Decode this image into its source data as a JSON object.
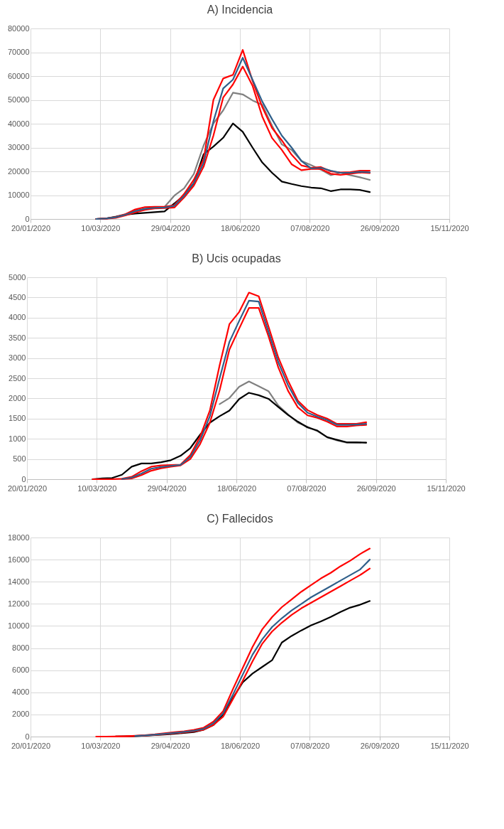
{
  "chart_data": [
    {
      "type": "line",
      "title": "A) Incidencia",
      "grid": true,
      "x": [
        "2020-03-07",
        "2020-03-14",
        "2020-03-21",
        "2020-03-28",
        "2020-04-04",
        "2020-04-11",
        "2020-04-18",
        "2020-04-25",
        "2020-05-02",
        "2020-05-09",
        "2020-05-16",
        "2020-05-23",
        "2020-05-30",
        "2020-06-06",
        "2020-06-13",
        "2020-06-20",
        "2020-06-27",
        "2020-07-04",
        "2020-07-11",
        "2020-07-18",
        "2020-07-25",
        "2020-08-01",
        "2020-08-08",
        "2020-08-15",
        "2020-08-22",
        "2020-08-29",
        "2020-09-05",
        "2020-09-12",
        "2020-09-19"
      ],
      "xlim": [
        "2020-01-20",
        "2020-11-15"
      ],
      "xticks": [
        {
          "value": "2020-01-20",
          "label": "20/01/2020"
        },
        {
          "value": "2020-03-10",
          "label": "10/03/2020"
        },
        {
          "value": "2020-04-29",
          "label": "29/04/2020"
        },
        {
          "value": "2020-06-18",
          "label": "18/06/2020"
        },
        {
          "value": "2020-08-07",
          "label": "07/08/2020"
        },
        {
          "value": "2020-09-26",
          "label": "26/09/2020"
        },
        {
          "value": "2020-11-15",
          "label": "15/11/2020"
        }
      ],
      "ylim": [
        0,
        80000
      ],
      "yticks": [
        0,
        10000,
        20000,
        30000,
        40000,
        50000,
        60000,
        70000,
        80000
      ],
      "series": [
        {
          "color": "#808080",
          "values": [
            0,
            200,
            1000,
            2000,
            3500,
            4300,
            4700,
            5100,
            9800,
            12900,
            18900,
            30900,
            40100,
            45600,
            53000,
            52300,
            49800,
            47900,
            39200,
            31300,
            29000,
            24400,
            22600,
            20700,
            18400,
            19400,
            18400,
            17500,
            16400
          ]
        },
        {
          "color": "#000000",
          "values": [
            0,
            200,
            900,
            1800,
            2300,
            2600,
            2900,
            3200,
            6500,
            10000,
            15000,
            27200,
            30400,
            34100,
            40100,
            36600,
            30000,
            23700,
            19400,
            15700,
            14700,
            13800,
            13200,
            12900,
            11700,
            12400,
            12400,
            12200,
            11300
          ]
        },
        {
          "color": "#ff0000",
          "values": [
            0,
            200,
            800,
            2000,
            4000,
            5000,
            5100,
            5100,
            5800,
            10500,
            16500,
            25000,
            50000,
            59000,
            60500,
            71000,
            58000,
            47000,
            38200,
            33000,
            27000,
            22500,
            21500,
            21800,
            20000,
            19500,
            19700,
            20300,
            20300
          ]
        },
        {
          "color": "#ff0000",
          "values": [
            0,
            100,
            500,
            1500,
            2800,
            3800,
            4400,
            4600,
            4800,
            9000,
            14000,
            22000,
            35000,
            51000,
            56500,
            64000,
            56000,
            43000,
            34000,
            29000,
            23000,
            20500,
            21000,
            21000,
            19000,
            18500,
            19000,
            19500,
            19300
          ]
        },
        {
          "color": "#2f5f8a",
          "values": [
            0,
            200,
            700,
            1800,
            3300,
            4300,
            4700,
            4800,
            5500,
            9700,
            15200,
            23500,
            41000,
            54800,
            58500,
            67700,
            58500,
            49300,
            41900,
            35000,
            30000,
            24400,
            21200,
            21500,
            20300,
            19400,
            19400,
            19800,
            19600
          ]
        }
      ]
    },
    {
      "type": "line",
      "title": "B) Ucis ocupadas",
      "grid": true,
      "x": [
        "2020-03-07",
        "2020-03-14",
        "2020-03-21",
        "2020-03-28",
        "2020-04-04",
        "2020-04-11",
        "2020-04-18",
        "2020-04-25",
        "2020-05-02",
        "2020-05-09",
        "2020-05-16",
        "2020-05-23",
        "2020-05-30",
        "2020-06-06",
        "2020-06-13",
        "2020-06-20",
        "2020-06-27",
        "2020-07-04",
        "2020-07-11",
        "2020-07-18",
        "2020-07-25",
        "2020-08-01",
        "2020-08-08",
        "2020-08-15",
        "2020-08-22",
        "2020-08-29",
        "2020-09-05",
        "2020-09-12",
        "2020-09-19"
      ],
      "xlim": [
        "2020-01-20",
        "2020-11-15"
      ],
      "xticks": [
        {
          "value": "2020-01-20",
          "label": "20/01/2020"
        },
        {
          "value": "2020-03-10",
          "label": "10/03/2020"
        },
        {
          "value": "2020-04-29",
          "label": "29/04/2020"
        },
        {
          "value": "2020-06-18",
          "label": "18/06/2020"
        },
        {
          "value": "2020-08-07",
          "label": "07/08/2020"
        },
        {
          "value": "2020-09-26",
          "label": "26/09/2020"
        },
        {
          "value": "2020-11-15",
          "label": "15/11/2020"
        }
      ],
      "ylim": [
        0,
        5000
      ],
      "yticks": [
        0,
        500,
        1000,
        1500,
        2000,
        2500,
        3000,
        3500,
        4000,
        4500,
        5000
      ],
      "series": [
        {
          "color": "#808080",
          "values": [
            null,
            null,
            null,
            null,
            null,
            null,
            null,
            null,
            null,
            null,
            null,
            null,
            null,
            1860,
            2010,
            2290,
            2420,
            2300,
            2180,
            1825,
            1605,
            1400,
            1300,
            1190,
            1040,
            960,
            905,
            900,
            905
          ]
        },
        {
          "color": "#000000",
          "values": [
            0,
            20,
            30,
            110,
            310,
            390,
            390,
            420,
            470,
            580,
            770,
            1100,
            1400,
            1560,
            1700,
            1985,
            2140,
            2080,
            1990,
            1790,
            1590,
            1425,
            1280,
            1205,
            1040,
            975,
            915,
            915,
            905
          ]
        },
        {
          "color": "#ff0000",
          "values": [
            0,
            0,
            0,
            10,
            60,
            200,
            310,
            340,
            350,
            360,
            600,
            1050,
            1700,
            2820,
            3840,
            4140,
            4620,
            4530,
            3780,
            3015,
            2440,
            1945,
            1710,
            1590,
            1500,
            1370,
            1370,
            1370,
            1410
          ]
        },
        {
          "color": "#ff0000",
          "values": [
            null,
            null,
            null,
            0,
            20,
            100,
            210,
            270,
            310,
            340,
            500,
            870,
            1400,
            2200,
            3210,
            3730,
            4240,
            4240,
            3540,
            2770,
            2190,
            1780,
            1580,
            1520,
            1425,
            1305,
            1305,
            1330,
            1345
          ]
        },
        {
          "color": "#2f5f8a",
          "values": [
            null,
            null,
            null,
            5,
            40,
            140,
            260,
            300,
            330,
            355,
            550,
            960,
            1560,
            2500,
            3400,
            3920,
            4420,
            4400,
            3650,
            2900,
            2330,
            1890,
            1645,
            1550,
            1465,
            1345,
            1345,
            1355,
            1370
          ]
        }
      ]
    },
    {
      "type": "line",
      "title": "C) Fallecidos",
      "grid": true,
      "x": [
        "2020-03-07",
        "2020-03-14",
        "2020-03-21",
        "2020-03-28",
        "2020-04-04",
        "2020-04-11",
        "2020-04-18",
        "2020-04-25",
        "2020-05-02",
        "2020-05-09",
        "2020-05-16",
        "2020-05-23",
        "2020-05-30",
        "2020-06-06",
        "2020-06-13",
        "2020-06-20",
        "2020-06-27",
        "2020-07-04",
        "2020-07-11",
        "2020-07-18",
        "2020-07-25",
        "2020-08-01",
        "2020-08-08",
        "2020-08-15",
        "2020-08-22",
        "2020-08-29",
        "2020-09-05",
        "2020-09-12",
        "2020-09-19"
      ],
      "xlim": [
        "2020-01-20",
        "2020-11-15"
      ],
      "xticks": [
        {
          "value": "2020-01-20",
          "label": "20/01/2020"
        },
        {
          "value": "2020-03-10",
          "label": "10/03/2020"
        },
        {
          "value": "2020-04-29",
          "label": "29/04/2020"
        },
        {
          "value": "2020-06-18",
          "label": "18/06/2020"
        },
        {
          "value": "2020-08-07",
          "label": "07/08/2020"
        },
        {
          "value": "2020-09-26",
          "label": "26/09/2020"
        },
        {
          "value": "2020-11-15",
          "label": "15/11/2020"
        }
      ],
      "ylim": [
        0,
        18000
      ],
      "yticks": [
        0,
        2000,
        4000,
        6000,
        8000,
        10000,
        12000,
        14000,
        16000,
        18000
      ],
      "series": [
        {
          "color": "#000000",
          "values": [
            null,
            null,
            10,
            20,
            40,
            80,
            130,
            190,
            250,
            330,
            400,
            620,
            1050,
            2000,
            3500,
            4900,
            5700,
            6300,
            6900,
            8500,
            9100,
            9600,
            10060,
            10420,
            10820,
            11260,
            11660,
            11920,
            12260
          ]
        },
        {
          "color": "#ff0000",
          "values": [
            0,
            0,
            10,
            30,
            70,
            120,
            200,
            300,
            390,
            480,
            600,
            800,
            1350,
            2300,
            4300,
            6200,
            8100,
            9700,
            10800,
            11700,
            12400,
            13100,
            13700,
            14300,
            14800,
            15400,
            15900,
            16500,
            17000
          ]
        },
        {
          "color": "#ff0000",
          "values": [
            null,
            null,
            10,
            30,
            50,
            90,
            150,
            220,
            290,
            370,
            470,
            620,
            1050,
            1800,
            3400,
            5050,
            6800,
            8400,
            9500,
            10300,
            11000,
            11600,
            12100,
            12600,
            13100,
            13600,
            14100,
            14600,
            15200
          ]
        },
        {
          "color": "#2f5f8a",
          "values": [
            null,
            null,
            null,
            null,
            60,
            100,
            170,
            250,
            330,
            420,
            520,
            700,
            1200,
            2100,
            3800,
            5600,
            7400,
            8800,
            9900,
            10700,
            11400,
            12000,
            12600,
            13100,
            13600,
            14100,
            14600,
            15100,
            16000
          ]
        }
      ]
    }
  ]
}
